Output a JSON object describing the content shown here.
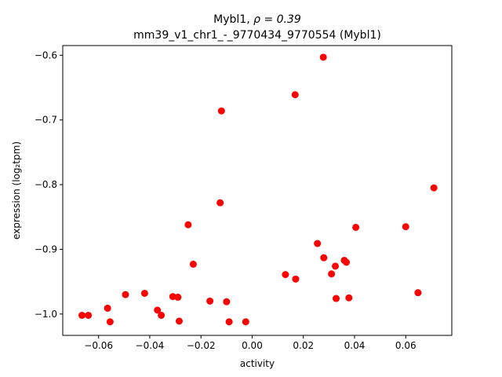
{
  "chart_data": {
    "type": "scatter",
    "title_line1_name": "Mybl1, ",
    "title_line1_rho": "ρ = 0.39",
    "title_line2": "mm39_v1_chr1_-_9770434_9770554 (Mybl1)",
    "xlabel": "activity",
    "ylabel": "expression (log₂tpm)",
    "xlim": [
      -0.074,
      0.078
    ],
    "ylim": [
      -1.033,
      -0.585
    ],
    "xticks": [
      -0.06,
      -0.04,
      -0.02,
      0.0,
      0.02,
      0.04,
      0.06
    ],
    "xtick_labels": [
      "−0.06",
      "−0.04",
      "−0.02",
      "0.00",
      "0.02",
      "0.04",
      "0.06"
    ],
    "yticks": [
      -1.0,
      -0.9,
      -0.8,
      -0.7,
      -0.6
    ],
    "ytick_labels": [
      "−1.0",
      "−0.9",
      "−0.8",
      "−0.7",
      "−0.6"
    ],
    "grid": false,
    "marker_color": "#ff0000",
    "points": [
      {
        "x": -0.0665,
        "y": -1.002
      },
      {
        "x": -0.064,
        "y": -1.002
      },
      {
        "x": -0.0565,
        "y": -0.991
      },
      {
        "x": -0.0555,
        "y": -1.012
      },
      {
        "x": -0.0495,
        "y": -0.97
      },
      {
        "x": -0.042,
        "y": -0.968
      },
      {
        "x": -0.037,
        "y": -0.994
      },
      {
        "x": -0.0355,
        "y": -1.002
      },
      {
        "x": -0.031,
        "y": -0.973
      },
      {
        "x": -0.029,
        "y": -0.974
      },
      {
        "x": -0.0285,
        "y": -1.011
      },
      {
        "x": -0.025,
        "y": -0.862
      },
      {
        "x": -0.023,
        "y": -0.923
      },
      {
        "x": -0.0165,
        "y": -0.98
      },
      {
        "x": -0.0125,
        "y": -0.828
      },
      {
        "x": -0.012,
        "y": -0.686
      },
      {
        "x": -0.01,
        "y": -0.981
      },
      {
        "x": -0.009,
        "y": -1.012
      },
      {
        "x": -0.0025,
        "y": -1.012
      },
      {
        "x": 0.013,
        "y": -0.939
      },
      {
        "x": 0.0168,
        "y": -0.661
      },
      {
        "x": 0.017,
        "y": -0.946
      },
      {
        "x": 0.0255,
        "y": -0.891
      },
      {
        "x": 0.0278,
        "y": -0.603
      },
      {
        "x": 0.028,
        "y": -0.913
      },
      {
        "x": 0.031,
        "y": -0.938
      },
      {
        "x": 0.0325,
        "y": -0.926
      },
      {
        "x": 0.0328,
        "y": -0.976
      },
      {
        "x": 0.036,
        "y": -0.917
      },
      {
        "x": 0.0368,
        "y": -0.92
      },
      {
        "x": 0.0378,
        "y": -0.975
      },
      {
        "x": 0.0405,
        "y": -0.866
      },
      {
        "x": 0.06,
        "y": -0.865
      },
      {
        "x": 0.0648,
        "y": -0.967
      },
      {
        "x": 0.071,
        "y": -0.805
      }
    ]
  }
}
